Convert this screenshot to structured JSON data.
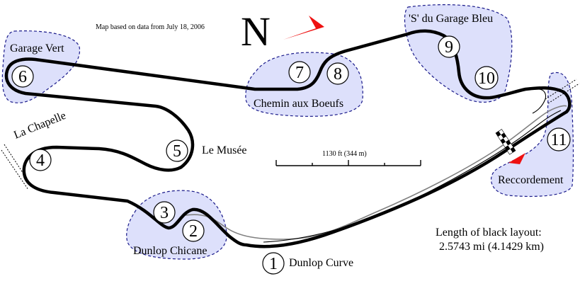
{
  "map": {
    "note": "Map based on data from July 18, 2006",
    "north_label": "N",
    "scale_label": "1130 ft (344 m)",
    "length_line1": "Length of black layout:",
    "length_line2": "2.5743 mi (4.1429 km)",
    "track_color": "#000000",
    "alt_track_color": "#808080",
    "zone_color": "#dde0fb",
    "arrow_color": "#ee1111"
  },
  "corners": [
    {
      "number": "1",
      "name": "Dunlop Curve"
    },
    {
      "number": "2",
      "name": "Dunlop Chicane"
    },
    {
      "number": "3",
      "name": ""
    },
    {
      "number": "4",
      "name": "La Chapelle"
    },
    {
      "number": "5",
      "name": "Le Musée"
    },
    {
      "number": "6",
      "name": "Garage Vert"
    },
    {
      "number": "7",
      "name": "Chemin aux Boeufs"
    },
    {
      "number": "8",
      "name": ""
    },
    {
      "number": "9",
      "name": "'S' du Garage Bleu"
    },
    {
      "number": "10",
      "name": ""
    },
    {
      "number": "11",
      "name": "Reccordement"
    }
  ]
}
